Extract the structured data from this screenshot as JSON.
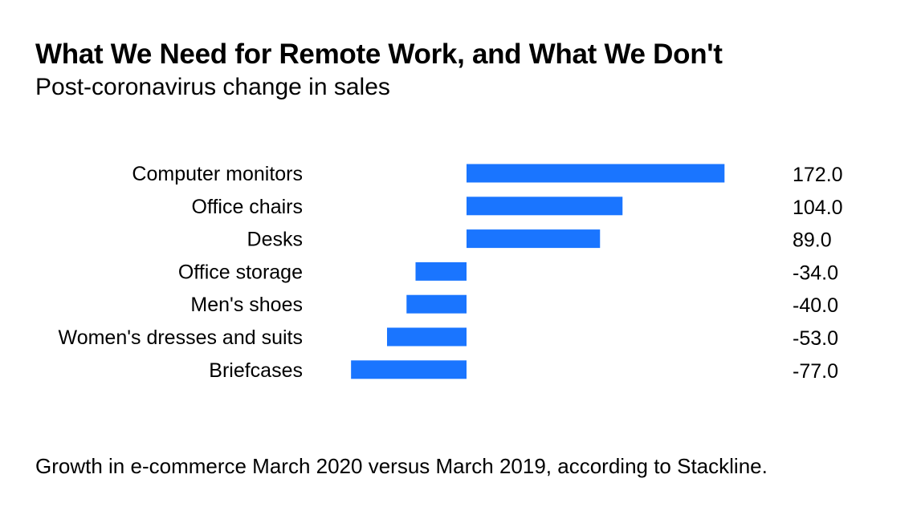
{
  "title": "What We Need for Remote Work, and What We Don't",
  "subtitle": "Post-coronavirus change in sales",
  "footnote": "Growth in e-commerce March 2020 versus March 2019, according to Stackline.",
  "chart_data": {
    "type": "bar",
    "orientation": "horizontal",
    "title": "What We Need for Remote Work, and What We Don't",
    "subtitle": "Post-coronavirus change in sales",
    "categories": [
      "Computer monitors",
      "Office chairs",
      "Desks",
      "Office storage",
      "Men's shoes",
      "Women's dresses and suits",
      "Briefcases"
    ],
    "values": [
      172.0,
      104.0,
      89.0,
      -34.0,
      -40.0,
      -53.0,
      -77.0
    ],
    "value_labels": [
      "172.0",
      "104.0",
      "89.0",
      "-34.0",
      "-40.0",
      "-53.0",
      "-77.0"
    ],
    "bar_color": "#1a75ff",
    "grid": false,
    "legend": "none"
  }
}
